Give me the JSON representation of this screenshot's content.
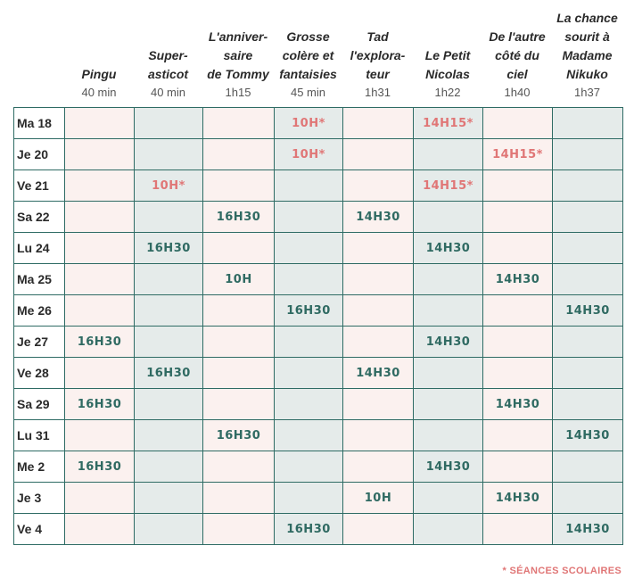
{
  "films": [
    {
      "title_lines": [
        "Pingu"
      ],
      "duration": "40 min"
    },
    {
      "title_lines": [
        "Super-",
        "asticot"
      ],
      "duration": "40 min"
    },
    {
      "title_lines": [
        "L'anniver-",
        "saire",
        "de Tommy"
      ],
      "duration": "1h15"
    },
    {
      "title_lines": [
        "Grosse",
        "colère et",
        "fantaisies"
      ],
      "duration": "45 min"
    },
    {
      "title_lines": [
        "Tad",
        "l'explora-",
        "teur"
      ],
      "duration": "1h31"
    },
    {
      "title_lines": [
        "Le Petit",
        "Nicolas"
      ],
      "duration": "1h22"
    },
    {
      "title_lines": [
        "De l'autre",
        "côté du",
        "ciel"
      ],
      "duration": "1h40"
    },
    {
      "title_lines": [
        "La chance",
        "sourit à",
        "Madame",
        "Nikuko"
      ],
      "duration": "1h37"
    }
  ],
  "rows": [
    {
      "day": "Ma 18",
      "cells": [
        "",
        "",
        "",
        "10H*",
        "",
        "14H15*",
        "",
        ""
      ]
    },
    {
      "day": "Je 20",
      "cells": [
        "",
        "",
        "",
        "10H*",
        "",
        "",
        "14H15*",
        ""
      ]
    },
    {
      "day": "Ve 21",
      "cells": [
        "",
        "10H*",
        "",
        "",
        "",
        "14H15*",
        "",
        ""
      ]
    },
    {
      "day": "Sa 22",
      "cells": [
        "",
        "",
        "16H30",
        "",
        "14H30",
        "",
        "",
        ""
      ]
    },
    {
      "day": "Lu 24",
      "cells": [
        "",
        "16H30",
        "",
        "",
        "",
        "14H30",
        "",
        ""
      ]
    },
    {
      "day": "Ma 25",
      "cells": [
        "",
        "",
        "10H",
        "",
        "",
        "",
        "14H30",
        ""
      ]
    },
    {
      "day": "Me 26",
      "cells": [
        "",
        "",
        "",
        "16H30",
        "",
        "",
        "",
        "14H30"
      ]
    },
    {
      "day": "Je 27",
      "cells": [
        "16H30",
        "",
        "",
        "",
        "",
        "14H30",
        "",
        ""
      ]
    },
    {
      "day": "Ve 28",
      "cells": [
        "",
        "16H30",
        "",
        "",
        "14H30",
        "",
        "",
        ""
      ]
    },
    {
      "day": "Sa 29",
      "cells": [
        "16H30",
        "",
        "",
        "",
        "",
        "",
        "14H30",
        ""
      ]
    },
    {
      "day": "Lu 31",
      "cells": [
        "",
        "",
        "16H30",
        "",
        "",
        "",
        "",
        "14H30"
      ]
    },
    {
      "day": "Me 2",
      "cells": [
        "16H30",
        "",
        "",
        "",
        "",
        "14H30",
        "",
        ""
      ]
    },
    {
      "day": "Je 3",
      "cells": [
        "",
        "",
        "",
        "",
        "10H",
        "",
        "14H30",
        ""
      ]
    },
    {
      "day": "Ve 4",
      "cells": [
        "",
        "",
        "",
        "16H30",
        "",
        "",
        "",
        "14H30"
      ]
    }
  ],
  "footnote": "* SÉANCES SCOLAIRES",
  "colors": {
    "public_time": "#2f6a62",
    "school_time": "#e07676",
    "pink_column": "#fbf1ef",
    "grey_column": "#e5ebea",
    "grid_line": "#2e6b64"
  }
}
